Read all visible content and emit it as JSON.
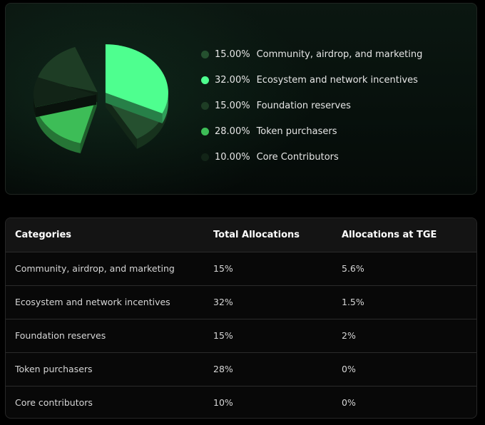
{
  "chart_data": {
    "type": "pie",
    "slices": [
      {
        "label": "Community, airdrop, and marketing",
        "percent_label": "15.00%",
        "value": 15.0,
        "color": "#25502f"
      },
      {
        "label": "Ecosystem and network incentives",
        "percent_label": "32.00%",
        "value": 32.0,
        "color": "#4eff8f"
      },
      {
        "label": "Foundation reserves",
        "percent_label": "15.00%",
        "value": 15.0,
        "color": "#1e3d25"
      },
      {
        "label": "Token purchasers",
        "percent_label": "28.00%",
        "value": 28.0,
        "color": "#3dbd57"
      },
      {
        "label": "Core Contributors",
        "percent_label": "10.00%",
        "value": 10.0,
        "color": "#122417"
      }
    ],
    "legend_position": "right",
    "style": "3d exploded"
  },
  "table": {
    "headers": [
      "Categories",
      "Total Allocations",
      "Allocations at TGE"
    ],
    "rows": [
      [
        "Community, airdrop, and marketing",
        "15%",
        "5.6%"
      ],
      [
        "Ecosystem and network incentives",
        "32%",
        "1.5%"
      ],
      [
        "Foundation reserves",
        "15%",
        "2%"
      ],
      [
        "Token purchasers",
        "28%",
        "0%"
      ],
      [
        "Core contributors",
        "10%",
        "0%"
      ]
    ]
  }
}
